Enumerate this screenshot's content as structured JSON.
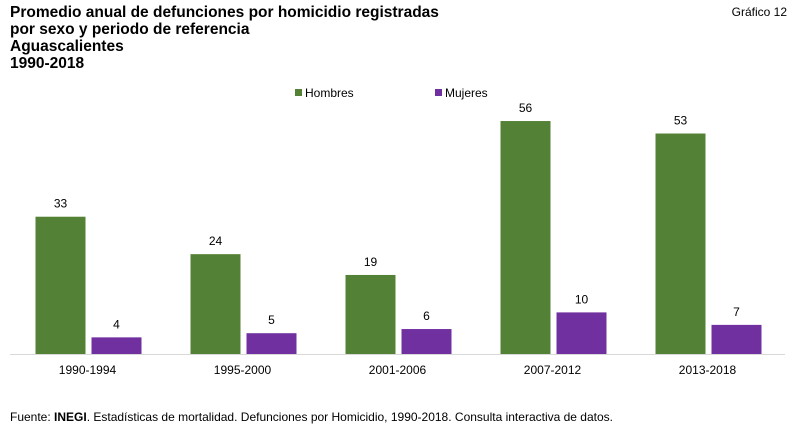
{
  "gnum": "Gráfico 12",
  "title_lines": [
    "Promedio anual de defunciones por homicidio registradas",
    "por sexo y periodo de referencia",
    "Aguascalientes",
    "1990-2018"
  ],
  "footer": {
    "prefix": "Fuente: ",
    "bold": "INEGI",
    "rest": ". Estadísticas de mortalidad. Defunciones por Homicidio, 1990-2018. Consulta interactiva de datos."
  },
  "chart_data": {
    "type": "bar",
    "title": "Promedio anual de defunciones por homicidio registradas por sexo y periodo de referencia, Aguascalientes 1990-2018",
    "categories": [
      "1990-1994",
      "1995-2000",
      "2001-2006",
      "2007-2012",
      "2013-2018"
    ],
    "series": [
      {
        "name": "Hombres",
        "color": "#538135",
        "values": [
          33,
          24,
          19,
          56,
          53
        ]
      },
      {
        "name": "Mujeres",
        "color": "#7030A0",
        "values": [
          4,
          5,
          6,
          10,
          7
        ]
      }
    ],
    "ylim": [
      0,
      60
    ],
    "grid": false,
    "legend": "top-center"
  }
}
